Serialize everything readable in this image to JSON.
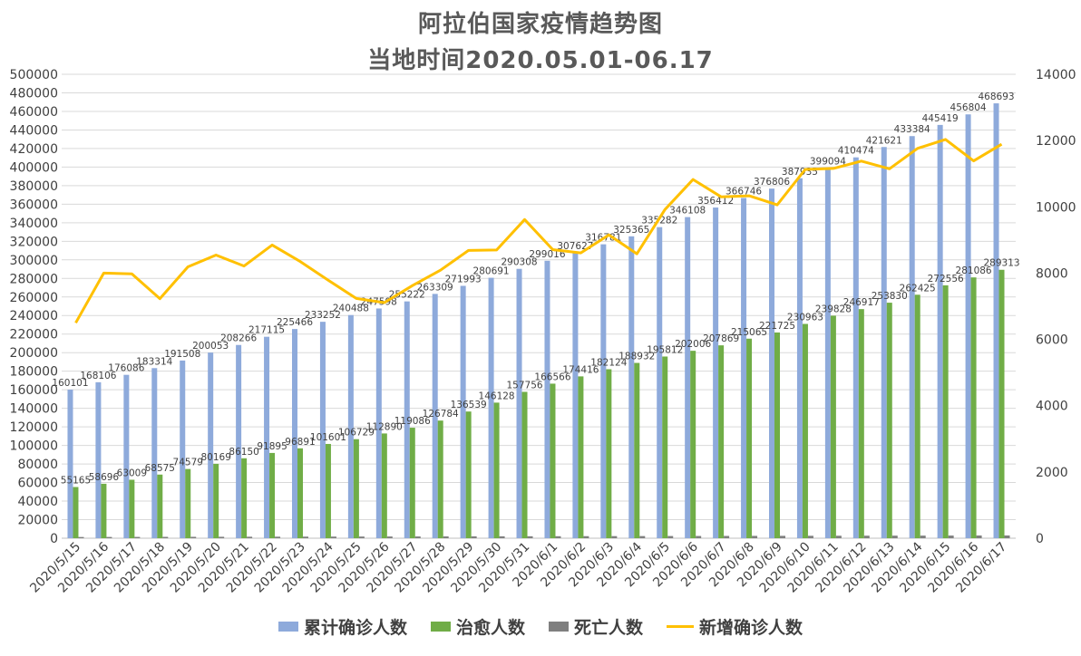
{
  "title_line1": "阿拉伯国家疫情趋势图",
  "title_line2": "当地时间2020.05.01-06.17",
  "colors": {
    "cumulative": "#8eaadb",
    "recovered": "#70ad47",
    "deaths": "#7f7f7f",
    "new_cases": "#ffc000",
    "grid": "#d9d9d9",
    "text": "#404040"
  },
  "legend": [
    {
      "label": "累计确诊人数",
      "kind": "rect",
      "color": "#8eaadb"
    },
    {
      "label": "治愈人数",
      "kind": "rect",
      "color": "#70ad47"
    },
    {
      "label": "死亡人数",
      "kind": "rect",
      "color": "#7f7f7f"
    },
    {
      "label": "新增确诊人数",
      "kind": "line",
      "color": "#ffc000"
    }
  ],
  "chart_data": {
    "type": "bar",
    "combo": "bar+line (secondary axis)",
    "categories": [
      "2020/5/15",
      "2020/5/16",
      "2020/5/17",
      "2020/5/18",
      "2020/5/19",
      "2020/5/20",
      "2020/5/21",
      "2020/5/22",
      "2020/5/23",
      "2020/5/24",
      "2020/5/25",
      "2020/5/26",
      "2020/5/27",
      "2020/5/28",
      "2020/5/29",
      "2020/5/30",
      "2020/5/31",
      "2020/6/1",
      "2020/6/2",
      "2020/6/3",
      "2020/6/4",
      "2020/6/5",
      "2020/6/6",
      "2020/6/7",
      "2020/6/8",
      "2020/6/9",
      "2020/6/10",
      "2020/6/11",
      "2020/6/12",
      "2020/6/13",
      "2020/6/14",
      "2020/6/15",
      "2020/6/16",
      "2020/6/17"
    ],
    "series": [
      {
        "name": "累计确诊人数",
        "type": "bar",
        "axis": "left",
        "values": [
          160101,
          168106,
          176086,
          183314,
          191508,
          200053,
          208266,
          217115,
          225466,
          233252,
          240488,
          247598,
          255222,
          263309,
          271993,
          280691,
          290308,
          299016,
          307627,
          316781,
          325365,
          335282,
          346108,
          356412,
          366746,
          376806,
          387935,
          399094,
          410474,
          421621,
          433384,
          445419,
          456804,
          468693
        ]
      },
      {
        "name": "治愈人数",
        "type": "bar",
        "axis": "left",
        "values": [
          55165,
          58696,
          63009,
          68575,
          74579,
          80169,
          86150,
          91895,
          96891,
          101601,
          106729,
          112890,
          119086,
          126784,
          136539,
          146128,
          157756,
          166566,
          174416,
          182124,
          188932,
          195812,
          202006,
          207869,
          215065,
          221725,
          230963,
          239828,
          246917,
          253830,
          262425,
          272556,
          281086,
          289313
        ]
      },
      {
        "name": "死亡人数",
        "type": "bar",
        "axis": "left",
        "values": [
          1300,
          1350,
          1400,
          1450,
          1500,
          1550,
          1600,
          1650,
          1700,
          1750,
          1800,
          1850,
          1900,
          1950,
          2000,
          2050,
          2100,
          2150,
          2200,
          2250,
          2300,
          2350,
          2400,
          2450,
          2500,
          2550,
          2600,
          2650,
          2700,
          2750,
          2800,
          2850,
          2900,
          2950
        ]
      },
      {
        "name": "新增确诊人数",
        "type": "line",
        "axis": "right",
        "values": [
          6500,
          8000,
          7980,
          7230,
          8190,
          8545,
          8213,
          8849,
          8351,
          7786,
          7236,
          7110,
          7624,
          8087,
          8684,
          8698,
          9617,
          8708,
          8611,
          9154,
          8584,
          9917,
          10826,
          10304,
          10334,
          10060,
          11129,
          11159,
          11380,
          11147,
          11763,
          12035,
          11385,
          11889
        ]
      }
    ],
    "ylim_left": [
      0,
      500000
    ],
    "yticks_left": [
      0,
      20000,
      40000,
      60000,
      80000,
      100000,
      120000,
      140000,
      160000,
      180000,
      200000,
      220000,
      240000,
      260000,
      280000,
      300000,
      320000,
      340000,
      360000,
      380000,
      400000,
      420000,
      440000,
      460000,
      480000,
      500000
    ],
    "ylim_right": [
      0,
      14000
    ],
    "yticks_right": [
      0,
      2000,
      4000,
      6000,
      8000,
      10000,
      12000,
      14000
    ],
    "grid": true,
    "legend_position": "bottom",
    "data_labels": [
      "累计确诊人数",
      "治愈人数"
    ]
  }
}
